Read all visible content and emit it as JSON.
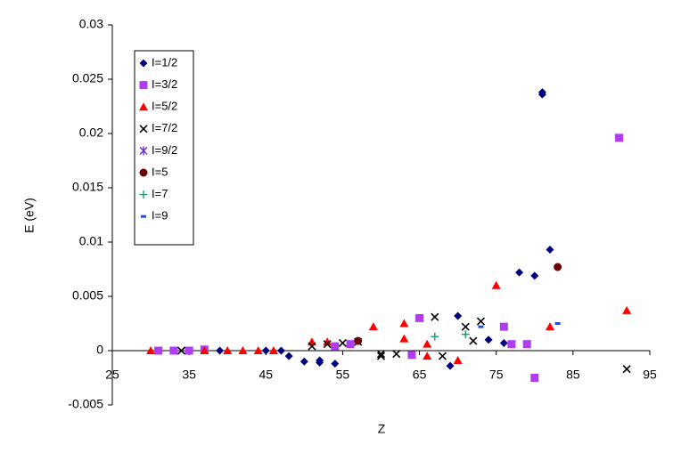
{
  "chart_data": {
    "type": "scatter",
    "xlabel": "Z",
    "ylabel": "E (eV)",
    "xlim": [
      25,
      95
    ],
    "xticks": [
      25,
      35,
      45,
      55,
      65,
      75,
      85,
      95
    ],
    "ylim": [
      -0.005,
      0.03
    ],
    "yticks": [
      -0.005,
      0,
      0.005,
      0.01,
      0.015,
      0.02,
      0.025,
      0.03
    ],
    "grid": false,
    "legend": "upper left",
    "series": [
      {
        "name": "I=1/2",
        "color": "#000080",
        "marker": "diamond",
        "x": [
          39,
          45,
          47,
          48,
          50,
          52,
          52,
          54,
          69,
          70,
          74,
          76,
          78,
          80,
          81,
          81,
          82
        ],
        "y": [
          0,
          0,
          0,
          -0.0005,
          -0.001,
          -0.0009,
          -0.0011,
          -0.0012,
          -0.0014,
          0.0032,
          0.001,
          0.0007,
          0.0072,
          0.0069,
          0.0238,
          0.0236,
          0.0093
        ]
      },
      {
        "name": "I=3/2",
        "color": "#b03cf0",
        "marker": "square",
        "x": [
          31,
          33,
          35,
          37,
          54,
          56,
          64,
          65,
          76,
          77,
          79,
          80,
          91
        ],
        "y": [
          0,
          0,
          0,
          0.0001,
          0.0004,
          0.0006,
          -0.0004,
          0.003,
          0.0022,
          0.0006,
          0.0006,
          -0.0025,
          0.0196
        ]
      },
      {
        "name": "I=5/2",
        "color": "#ff0000",
        "marker": "triangle",
        "x": [
          30,
          37,
          40,
          42,
          44,
          46,
          51,
          53,
          59,
          63,
          63,
          66,
          66,
          70,
          75,
          82,
          92
        ],
        "y": [
          0,
          0,
          0,
          0,
          0,
          0,
          0.0008,
          0.0008,
          0.0022,
          0.0025,
          0.0011,
          0.0006,
          -0.0005,
          -0.0009,
          0.006,
          0.0022,
          0.0037
        ]
      },
      {
        "name": "I=7/2",
        "color": "#000000",
        "marker": "x",
        "x": [
          34,
          51,
          53,
          55,
          57,
          60,
          60,
          62,
          67,
          68,
          71,
          72,
          73,
          92
        ],
        "y": [
          0,
          0.0004,
          0.0006,
          0.0007,
          0.0008,
          -0.0003,
          -0.0005,
          -0.0003,
          0.0031,
          -0.0005,
          0.0022,
          0.0009,
          0.0027,
          -0.0017
        ]
      },
      {
        "name": "I=9/2",
        "color": "#6a2ccf",
        "marker": "star",
        "x": [],
        "y": []
      },
      {
        "name": "I=5",
        "color": "#6b0000",
        "marker": "circle",
        "x": [
          57,
          83
        ],
        "y": [
          0.0009,
          0.0077
        ]
      },
      {
        "name": "I=7",
        "color": "#1a9a6a",
        "marker": "plus",
        "x": [
          67,
          71
        ],
        "y": [
          0.0013,
          0.0015
        ]
      },
      {
        "name": "I=9",
        "color": "#2050e0",
        "marker": "dash",
        "x": [
          73,
          83
        ],
        "y": [
          0.0022,
          0.0025
        ]
      }
    ]
  }
}
